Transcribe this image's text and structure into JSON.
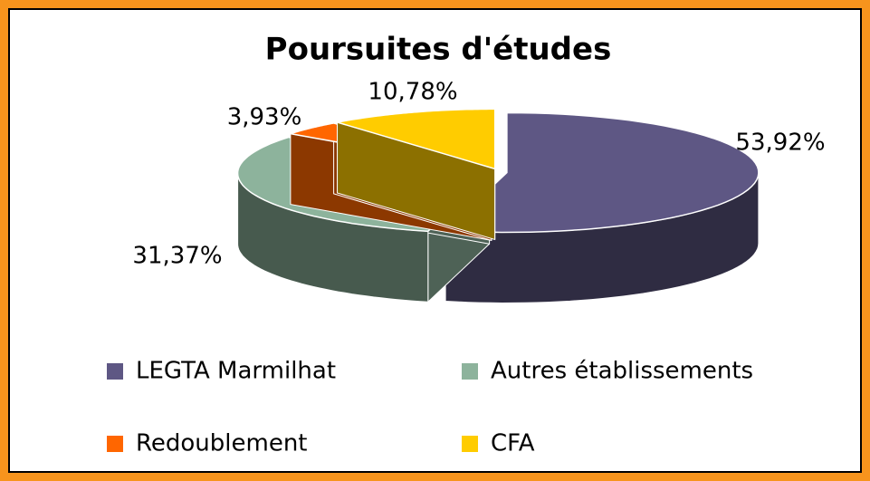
{
  "chart_data": {
    "type": "pie",
    "title": "Poursuites d'études",
    "categories": [
      "LEGTA Marmilhat",
      "Autres établissements",
      "Redoublement",
      "CFA"
    ],
    "values": [
      53.92,
      31.37,
      3.93,
      10.78
    ],
    "value_labels": [
      "53,92%",
      "31,37%",
      "3,93%",
      "10,78%"
    ],
    "colors": [
      "#5e5784",
      "#8db39c",
      "#ff6600",
      "#ffcc00"
    ]
  }
}
